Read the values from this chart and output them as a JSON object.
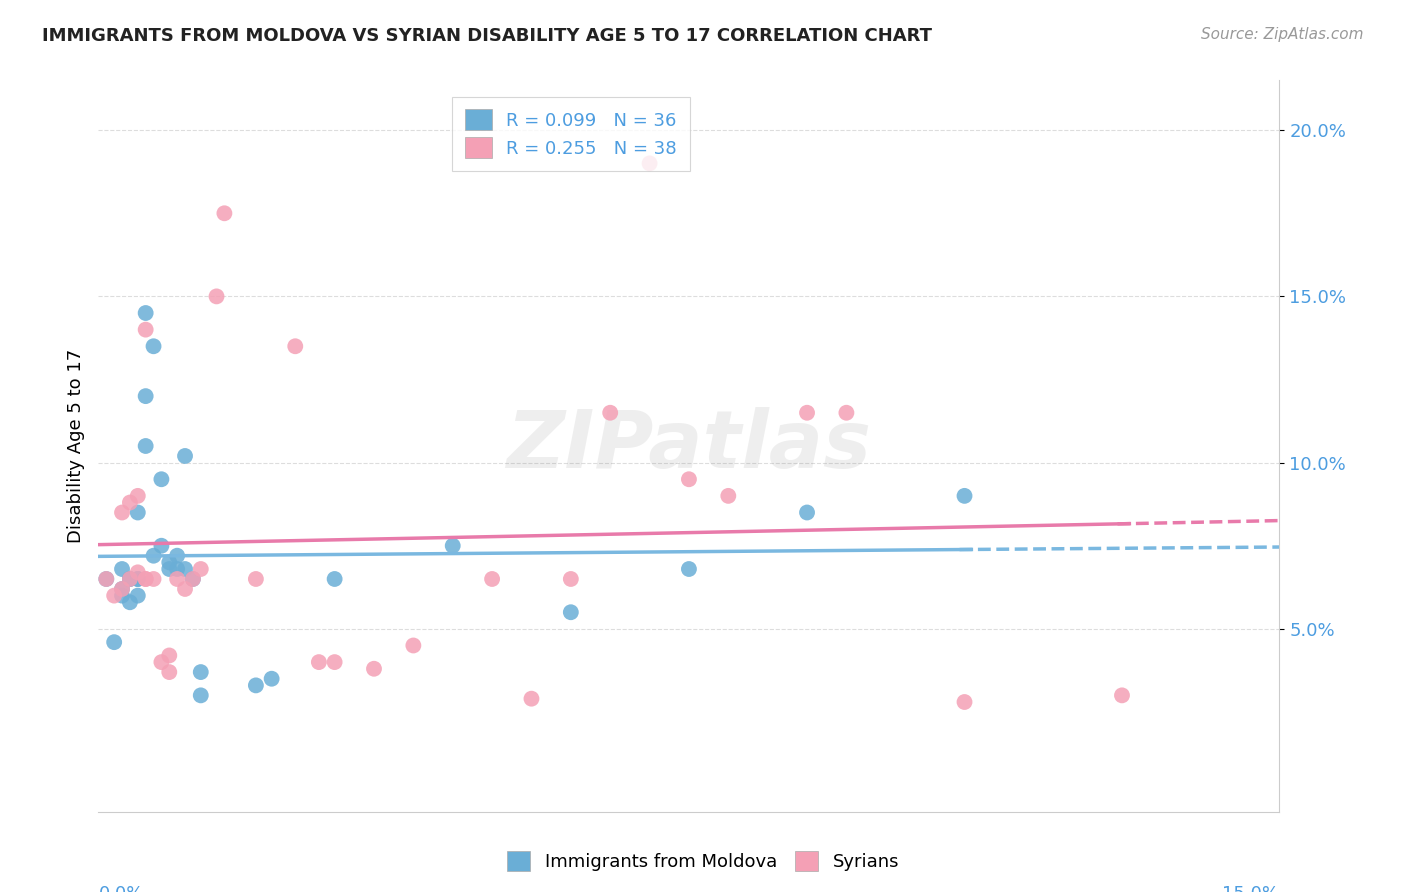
{
  "title": "IMMIGRANTS FROM MOLDOVA VS SYRIAN DISABILITY AGE 5 TO 17 CORRELATION CHART",
  "source": "Source: ZipAtlas.com",
  "ylabel": "Disability Age 5 to 17",
  "xmin": 0.0,
  "xmax": 0.15,
  "ymin": -0.005,
  "ymax": 0.215,
  "yticks": [
    0.05,
    0.1,
    0.15,
    0.2
  ],
  "ytick_labels": [
    "5.0%",
    "10.0%",
    "15.0%",
    "20.0%"
  ],
  "color_moldova": "#6aaed6",
  "color_syrian": "#f4a0b5",
  "color_trend_moldova": "#7ab8e0",
  "color_trend_syrian": "#e87aaa",
  "color_axis_text": "#4d9de0",
  "legend_label_moldova": "Immigrants from Moldova",
  "legend_label_syrian": "Syrians",
  "moldova_x": [
    0.001,
    0.002,
    0.003,
    0.003,
    0.003,
    0.004,
    0.004,
    0.004,
    0.005,
    0.005,
    0.005,
    0.005,
    0.006,
    0.006,
    0.006,
    0.007,
    0.007,
    0.008,
    0.008,
    0.009,
    0.009,
    0.01,
    0.01,
    0.011,
    0.011,
    0.012,
    0.013,
    0.013,
    0.02,
    0.022,
    0.03,
    0.045,
    0.06,
    0.075,
    0.09,
    0.11
  ],
  "moldova_y": [
    0.065,
    0.046,
    0.06,
    0.068,
    0.062,
    0.065,
    0.065,
    0.058,
    0.085,
    0.065,
    0.06,
    0.065,
    0.12,
    0.105,
    0.145,
    0.135,
    0.072,
    0.095,
    0.075,
    0.068,
    0.07,
    0.068,
    0.072,
    0.068,
    0.102,
    0.065,
    0.03,
    0.037,
    0.033,
    0.035,
    0.065,
    0.075,
    0.055,
    0.068,
    0.085,
    0.09
  ],
  "syrian_x": [
    0.001,
    0.002,
    0.003,
    0.003,
    0.004,
    0.004,
    0.005,
    0.005,
    0.006,
    0.006,
    0.006,
    0.007,
    0.008,
    0.009,
    0.009,
    0.01,
    0.011,
    0.012,
    0.013,
    0.015,
    0.016,
    0.02,
    0.025,
    0.028,
    0.03,
    0.035,
    0.04,
    0.05,
    0.055,
    0.06,
    0.065,
    0.07,
    0.075,
    0.08,
    0.09,
    0.095,
    0.11,
    0.13
  ],
  "syrian_y": [
    0.065,
    0.06,
    0.062,
    0.085,
    0.065,
    0.088,
    0.09,
    0.067,
    0.065,
    0.14,
    0.065,
    0.065,
    0.04,
    0.042,
    0.037,
    0.065,
    0.062,
    0.065,
    0.068,
    0.15,
    0.175,
    0.065,
    0.135,
    0.04,
    0.04,
    0.038,
    0.045,
    0.065,
    0.029,
    0.065,
    0.115,
    0.19,
    0.095,
    0.09,
    0.115,
    0.115,
    0.028,
    0.03
  ]
}
